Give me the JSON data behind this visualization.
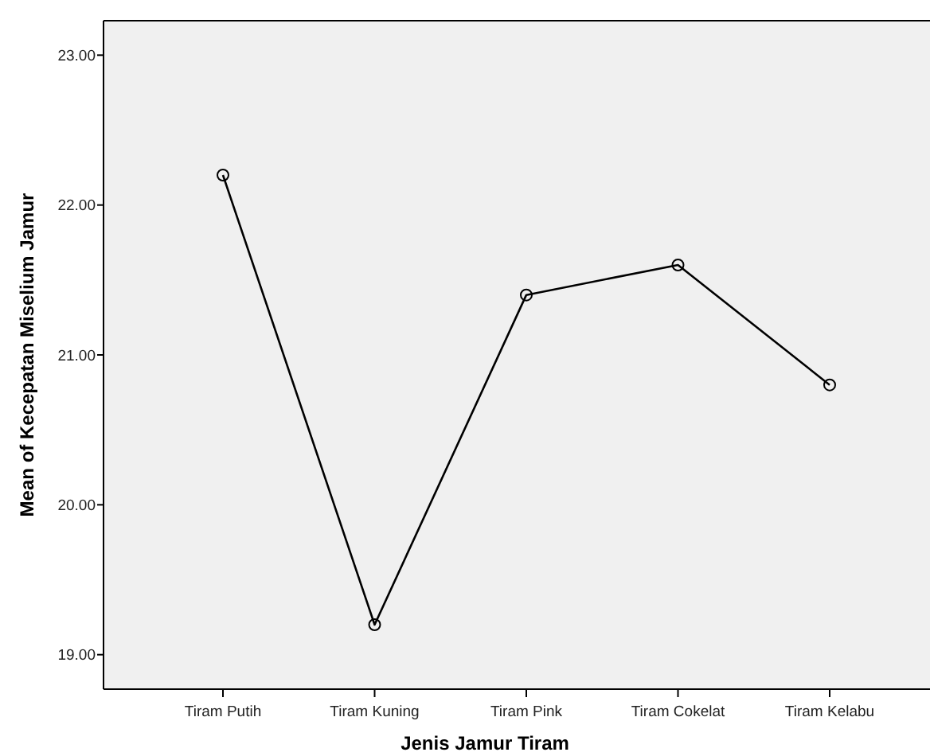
{
  "chart_data": {
    "type": "line",
    "xlabel": "Jenis Jamur Tiram",
    "ylabel": "Mean of Kecepatan Miselium Jamur",
    "categories": [
      "Tiram Putih",
      "Tiram Kuning",
      "Tiram Pink",
      "Tiram Cokelat",
      "Tiram Kelabu"
    ],
    "series": [
      {
        "color": "#000000",
        "values": [
          22.2,
          19.2,
          21.4,
          21.6,
          20.8
        ]
      }
    ],
    "ylim": [
      18.77,
      23.23
    ],
    "yticks": [
      {
        "value": 19,
        "label": "19.00"
      },
      {
        "value": 20,
        "label": "20.00"
      },
      {
        "value": 21,
        "label": "21.00"
      },
      {
        "value": 22,
        "label": "22.00"
      },
      {
        "value": 23,
        "label": "23.00"
      }
    ],
    "marker": "circle",
    "grid": false
  }
}
